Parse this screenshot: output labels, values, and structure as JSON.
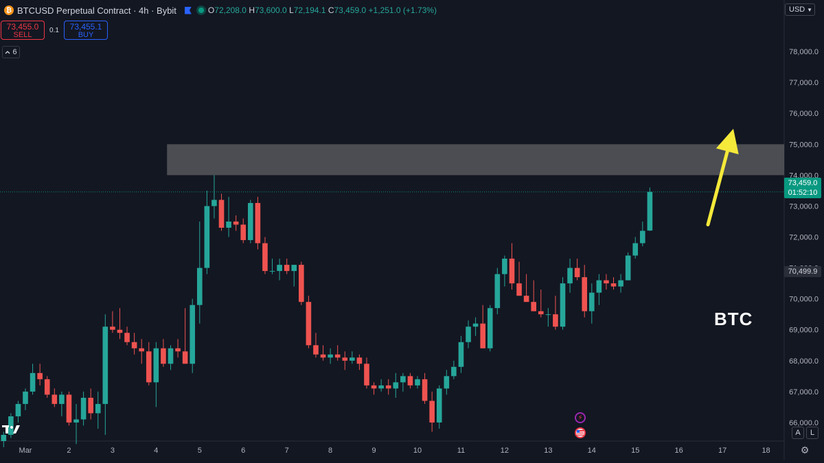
{
  "header": {
    "coin_symbol": "₿",
    "title": "BTCUSD Perpetual Contract · 4h · Bybit",
    "ohlc": {
      "o_label": "O",
      "o": "72,208.0",
      "h_label": "H",
      "h": "73,600.0",
      "l_label": "L",
      "l": "72,194.1",
      "c_label": "C",
      "c": "73,459.0",
      "change": "+1,251.0 (+1.73%)"
    }
  },
  "trade": {
    "sell_price": "73,455.0",
    "sell_label": "SELL",
    "quantity": "0.1",
    "buy_price": "73,455.1",
    "buy_label": "BUY"
  },
  "indicators_count": "6",
  "currency": "USD",
  "price_tag": {
    "price": "73,459.0",
    "countdown": "01:52:10"
  },
  "level_tag": "70,499.9",
  "annotation_text": "BTC",
  "scale_buttons": {
    "auto": "A",
    "log": "L"
  },
  "colors": {
    "background": "#131722",
    "up": "#26a69a",
    "down": "#ef5350",
    "zone": "#5a5b60",
    "arrow": "#f5e93a",
    "price_line": "#089981"
  },
  "icons": [
    "bitcoin-icon",
    "flag-icon",
    "status-dot-icon",
    "chevron-icon",
    "tradingview-logo-icon",
    "lightning-icon",
    "us-flag-icon",
    "gear-icon"
  ],
  "chart_data": {
    "type": "candlestick",
    "timeframe": "4h",
    "ylim": [
      65400,
      79000
    ],
    "y_ticks": [
      66000,
      67000,
      68000,
      69000,
      70000,
      71000,
      72000,
      73000,
      74000,
      75000,
      76000,
      77000,
      78000
    ],
    "y_tick_labels": [
      "66,000.0",
      "67,000.0",
      "68,000.0",
      "69,000.0",
      "70,000.0",
      "71,000.0",
      "72,000.0",
      "73,000.0",
      "74,000.0",
      "75,000.0",
      "76,000.0",
      "77,000.0",
      "78,000.0"
    ],
    "x_ticks": [
      {
        "label": "Mar",
        "index": 3
      },
      {
        "label": "2",
        "index": 9
      },
      {
        "label": "3",
        "index": 15
      },
      {
        "label": "4",
        "index": 21
      },
      {
        "label": "5",
        "index": 27
      },
      {
        "label": "6",
        "index": 33
      },
      {
        "label": "7",
        "index": 39
      },
      {
        "label": "8",
        "index": 45
      },
      {
        "label": "9",
        "index": 51
      },
      {
        "label": "10",
        "index": 57
      },
      {
        "label": "11",
        "index": 63
      },
      {
        "label": "12",
        "index": 69
      },
      {
        "label": "13",
        "index": 75
      },
      {
        "label": "14",
        "index": 81
      },
      {
        "label": "15",
        "index": 87
      },
      {
        "label": "16",
        "index": 93
      },
      {
        "label": "17",
        "index": 99
      },
      {
        "label": "18",
        "index": 105
      }
    ],
    "x_range": [
      -0.5,
      107.5
    ],
    "candles": [
      [
        65400,
        65700,
        65200,
        65600
      ],
      [
        65600,
        66300,
        65500,
        66200
      ],
      [
        66200,
        66700,
        66000,
        66600
      ],
      [
        66600,
        67100,
        66400,
        67000
      ],
      [
        67000,
        67900,
        66900,
        67600
      ],
      [
        67600,
        67900,
        67200,
        67400
      ],
      [
        67400,
        67500,
        66800,
        66900
      ],
      [
        66900,
        67100,
        66500,
        66600
      ],
      [
        66600,
        67000,
        66200,
        66900
      ],
      [
        66900,
        67000,
        65900,
        66000
      ],
      [
        66000,
        66600,
        65300,
        66100
      ],
      [
        66100,
        67000,
        65900,
        66800
      ],
      [
        66800,
        67100,
        66100,
        66300
      ],
      [
        66300,
        67000,
        65800,
        66600
      ],
      [
        66600,
        69500,
        65600,
        69100
      ],
      [
        69100,
        69600,
        68900,
        69000
      ],
      [
        69000,
        69700,
        68700,
        68900
      ],
      [
        68900,
        69100,
        68500,
        68600
      ],
      [
        68600,
        68900,
        68200,
        68400
      ],
      [
        68400,
        68700,
        67900,
        68300
      ],
      [
        68300,
        68600,
        67200,
        67300
      ],
      [
        67300,
        68600,
        66500,
        68400
      ],
      [
        68400,
        68700,
        67800,
        67900
      ],
      [
        67900,
        68500,
        67700,
        68400
      ],
      [
        68400,
        68700,
        68100,
        68300
      ],
      [
        68300,
        69700,
        67900,
        67900
      ],
      [
        67900,
        70000,
        67600,
        69800
      ],
      [
        69800,
        72500,
        69200,
        71000
      ],
      [
        71000,
        73500,
        70800,
        73000
      ],
      [
        73000,
        74000,
        72600,
        73200
      ],
      [
        73200,
        73400,
        72200,
        72300
      ],
      [
        72300,
        73300,
        72000,
        72500
      ],
      [
        72500,
        72700,
        72200,
        72400
      ],
      [
        72400,
        72600,
        71800,
        71900
      ],
      [
        71900,
        73200,
        71800,
        73100
      ],
      [
        73100,
        73300,
        71600,
        71800
      ],
      [
        71800,
        72000,
        70800,
        70900
      ],
      [
        70900,
        71300,
        70800,
        70900
      ],
      [
        70900,
        71300,
        70600,
        71100
      ],
      [
        71100,
        71300,
        70800,
        70900
      ],
      [
        70900,
        71100,
        70400,
        71100
      ],
      [
        71100,
        71200,
        69800,
        69900
      ],
      [
        69900,
        70100,
        68400,
        68500
      ],
      [
        68500,
        68900,
        68100,
        68200
      ],
      [
        68200,
        68500,
        68000,
        68100
      ],
      [
        68100,
        68400,
        67900,
        68200
      ],
      [
        68200,
        68500,
        68000,
        68100
      ],
      [
        68100,
        68300,
        67700,
        68000
      ],
      [
        68000,
        68300,
        67900,
        68100
      ],
      [
        68100,
        68200,
        67700,
        67900
      ],
      [
        67900,
        68100,
        67100,
        67200
      ],
      [
        67200,
        67300,
        66900,
        67100
      ],
      [
        67100,
        67400,
        67000,
        67200
      ],
      [
        67200,
        67400,
        66900,
        67100
      ],
      [
        67100,
        67600,
        66800,
        67300
      ],
      [
        67300,
        67600,
        67000,
        67500
      ],
      [
        67500,
        67600,
        67100,
        67200
      ],
      [
        67200,
        67500,
        67100,
        67400
      ],
      [
        67400,
        67600,
        66600,
        66700
      ],
      [
        66700,
        67000,
        65700,
        66000
      ],
      [
        66000,
        67200,
        65800,
        67100
      ],
      [
        67100,
        67700,
        66900,
        67500
      ],
      [
        67500,
        68000,
        67400,
        67800
      ],
      [
        67800,
        68800,
        67600,
        68600
      ],
      [
        68600,
        69300,
        68400,
        69100
      ],
      [
        69100,
        69400,
        68800,
        69200
      ],
      [
        69200,
        69800,
        68400,
        68400
      ],
      [
        68400,
        69800,
        68300,
        69700
      ],
      [
        69700,
        71000,
        69500,
        70800
      ],
      [
        70800,
        71400,
        70400,
        71300
      ],
      [
        71300,
        71800,
        70300,
        70500
      ],
      [
        70500,
        71200,
        70100,
        70100
      ],
      [
        70100,
        70800,
        69900,
        69900
      ],
      [
        69900,
        70600,
        69600,
        69600
      ],
      [
        69600,
        70300,
        69400,
        69500
      ],
      [
        69500,
        69700,
        69100,
        69500
      ],
      [
        69500,
        70100,
        69000,
        69100
      ],
      [
        69100,
        70700,
        69000,
        70500
      ],
      [
        70500,
        71300,
        70200,
        71000
      ],
      [
        71000,
        71300,
        70600,
        70700
      ],
      [
        70700,
        71100,
        69400,
        69600
      ],
      [
        69600,
        70500,
        69200,
        70200
      ],
      [
        70200,
        70800,
        69800,
        70600
      ],
      [
        70600,
        70800,
        70300,
        70500
      ],
      [
        70500,
        70700,
        70300,
        70400
      ],
      [
        70400,
        70800,
        70200,
        70600
      ],
      [
        70600,
        71500,
        70600,
        71400
      ],
      [
        71400,
        72000,
        71300,
        71800
      ],
      [
        71800,
        72500,
        71700,
        72200
      ],
      [
        72208,
        73600,
        72194.1,
        73459
      ]
    ],
    "resistance_zone": {
      "x_start": 22.5,
      "x_end": 107.5,
      "y_low": 74000,
      "y_high": 75000
    },
    "last_price": 73459,
    "arrow": {
      "from": [
        97,
        72400
      ],
      "to": [
        100.5,
        75500
      ]
    }
  }
}
